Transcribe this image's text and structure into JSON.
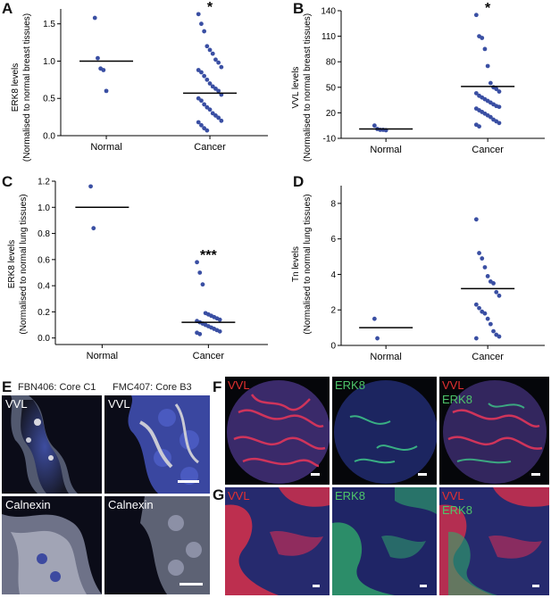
{
  "panels": {
    "A": "A",
    "B": "B",
    "C": "C",
    "D": "D",
    "E": "E",
    "F": "F",
    "G": "G"
  },
  "chart_data": [
    {
      "id": "A",
      "type": "scatter",
      "ylabel_line1": "ERK8 levels",
      "ylabel_line2": "(Normalised to normal breast tissues)",
      "categories": [
        "Normal",
        "Cancer"
      ],
      "ylim": [
        0,
        1.7
      ],
      "yticks": [
        "0.0",
        "0.5",
        "1.0",
        "1.5"
      ],
      "ytick_values": [
        0.0,
        0.5,
        1.0,
        1.5
      ],
      "annotation": "*",
      "medians": [
        1.0,
        0.57
      ],
      "points": [
        [
          1.58,
          1.04,
          0.9,
          0.88,
          0.6
        ],
        [
          1.63,
          1.5,
          1.4,
          1.2,
          1.15,
          1.1,
          1.02,
          0.98,
          0.92,
          0.88,
          0.85,
          0.8,
          0.75,
          0.7,
          0.66,
          0.63,
          0.6,
          0.55,
          0.5,
          0.47,
          0.42,
          0.38,
          0.35,
          0.3,
          0.27,
          0.24,
          0.2,
          0.18,
          0.14,
          0.1,
          0.07
        ]
      ]
    },
    {
      "id": "B",
      "type": "scatter",
      "ylabel_line1": "VVL levels",
      "ylabel_line2": "(Normalised to normal breast tissues)",
      "categories": [
        "Normal",
        "Cancer"
      ],
      "ylim": [
        -10,
        140
      ],
      "yticks": [
        "-10",
        "20",
        "50",
        "80",
        "110",
        "140"
      ],
      "ytick_values": [
        -10,
        20,
        50,
        80,
        110,
        140
      ],
      "annotation": "*",
      "medians": [
        1,
        51
      ],
      "points": [
        [
          5,
          1,
          0,
          0,
          -0.5
        ],
        [
          135,
          110,
          108,
          95,
          75,
          55,
          50,
          48,
          45,
          43,
          40,
          38,
          36,
          34,
          32,
          30,
          28,
          27,
          25,
          23,
          21,
          19,
          17,
          15,
          12,
          10,
          8,
          6,
          4
        ]
      ]
    },
    {
      "id": "C",
      "type": "scatter",
      "ylabel_line1": "ERK8 levels",
      "ylabel_line2": "(Normalised to normal lung tissues)",
      "categories": [
        "Normal",
        "Cancer"
      ],
      "ylim": [
        -0.05,
        1.2
      ],
      "yticks": [
        "0.0",
        "0.2",
        "0.4",
        "0.6",
        "0.8",
        "1.0",
        "1.2"
      ],
      "ytick_values": [
        0.0,
        0.2,
        0.4,
        0.6,
        0.8,
        1.0,
        1.2
      ],
      "annotation": "***",
      "medians": [
        1.0,
        0.12
      ],
      "points": [
        [
          1.16,
          0.84
        ],
        [
          0.58,
          0.5,
          0.41,
          0.19,
          0.18,
          0.17,
          0.16,
          0.15,
          0.14,
          0.13,
          0.12,
          0.11,
          0.1,
          0.09,
          0.08,
          0.07,
          0.06,
          0.05,
          0.04,
          0.03
        ]
      ]
    },
    {
      "id": "D",
      "type": "scatter",
      "ylabel_line1": "Tn levels",
      "ylabel_line2": "(Normalised to normal lung tissues)",
      "categories": [
        "Normal",
        "Cancer"
      ],
      "ylim": [
        0,
        9
      ],
      "yticks": [
        "0",
        "2",
        "4",
        "6",
        "8"
      ],
      "ytick_values": [
        0,
        2,
        4,
        6,
        8
      ],
      "annotation": "",
      "medians": [
        1.0,
        3.2
      ],
      "points": [
        [
          1.5,
          0.4
        ],
        [
          7.1,
          5.2,
          4.9,
          4.4,
          3.9,
          3.6,
          3.5,
          3.0,
          2.8,
          2.3,
          2.1,
          1.9,
          1.8,
          1.5,
          1.2,
          0.8,
          0.6,
          0.5,
          0.4
        ]
      ]
    }
  ],
  "microscopy": {
    "E": {
      "col1_title": "FBN406: Core C1",
      "col2_title": "FMC407: Core B3",
      "tiles": [
        {
          "label": "VVL"
        },
        {
          "label": "VVL"
        },
        {
          "label": "Calnexin"
        },
        {
          "label": "Calnexin"
        }
      ]
    },
    "F": {
      "tiles": [
        {
          "label1": "VVL",
          "label2": "",
          "color1": "#e53030",
          "color2": ""
        },
        {
          "label1": "ERK8",
          "label2": "",
          "color1": "#4ec56a",
          "color2": ""
        },
        {
          "label1": "VVL",
          "label2": "ERK8",
          "color1": "#e53030",
          "color2": "#4ec56a"
        }
      ]
    },
    "G": {
      "tiles": [
        {
          "label1": "VVL",
          "label2": "",
          "color1": "#e53030",
          "color2": ""
        },
        {
          "label1": "ERK8",
          "label2": "",
          "color1": "#4ec56a",
          "color2": ""
        },
        {
          "label1": "VVL",
          "label2": "ERK8",
          "color1": "#e53030",
          "color2": "#4ec56a"
        }
      ]
    }
  },
  "colors": {
    "dot": "#3a4fa3",
    "axis": "#000000",
    "label_red": "#e53030",
    "label_green": "#4ec56a"
  }
}
